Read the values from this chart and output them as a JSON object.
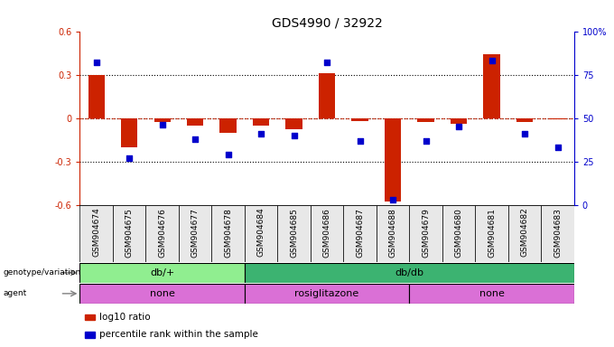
{
  "title": "GDS4990 / 32922",
  "samples": [
    "GSM904674",
    "GSM904675",
    "GSM904676",
    "GSM904677",
    "GSM904678",
    "GSM904684",
    "GSM904685",
    "GSM904686",
    "GSM904687",
    "GSM904688",
    "GSM904679",
    "GSM904680",
    "GSM904681",
    "GSM904682",
    "GSM904683"
  ],
  "log10_ratio": [
    0.3,
    -0.2,
    -0.03,
    -0.05,
    -0.1,
    -0.05,
    -0.08,
    0.31,
    -0.02,
    -0.58,
    -0.03,
    -0.04,
    0.44,
    -0.03,
    -0.01
  ],
  "percentile_rank": [
    82,
    27,
    46,
    38,
    29,
    41,
    40,
    82,
    37,
    3,
    37,
    45,
    83,
    41,
    33
  ],
  "genotype": [
    {
      "label": "db/+",
      "start": 0,
      "end": 5,
      "color": "#90EE90"
    },
    {
      "label": "db/db",
      "start": 5,
      "end": 15,
      "color": "#3CB371"
    }
  ],
  "agent": [
    {
      "label": "none",
      "start": 0,
      "end": 5,
      "color": "#DA70D6"
    },
    {
      "label": "rosiglitazone",
      "start": 5,
      "end": 10,
      "color": "#DA70D6"
    },
    {
      "label": "none",
      "start": 10,
      "end": 15,
      "color": "#DA70D6"
    }
  ],
  "ylim": [
    -0.6,
    0.6
  ],
  "yticks": [
    -0.6,
    -0.3,
    0.0,
    0.3,
    0.6
  ],
  "ytick_labels": [
    "-0.6",
    "-0.3",
    "0",
    "0.3",
    "0.6"
  ],
  "y2_ticks": [
    0,
    25,
    50,
    75,
    100
  ],
  "y2_labels": [
    "0",
    "25",
    "50",
    "75",
    "100%"
  ],
  "bar_color": "#CC2200",
  "dot_color": "#0000CC",
  "background": "#FFFFFF",
  "legend_items": [
    {
      "label": "log10 ratio",
      "color": "#CC2200"
    },
    {
      "label": "percentile rank within the sample",
      "color": "#0000CC"
    }
  ]
}
